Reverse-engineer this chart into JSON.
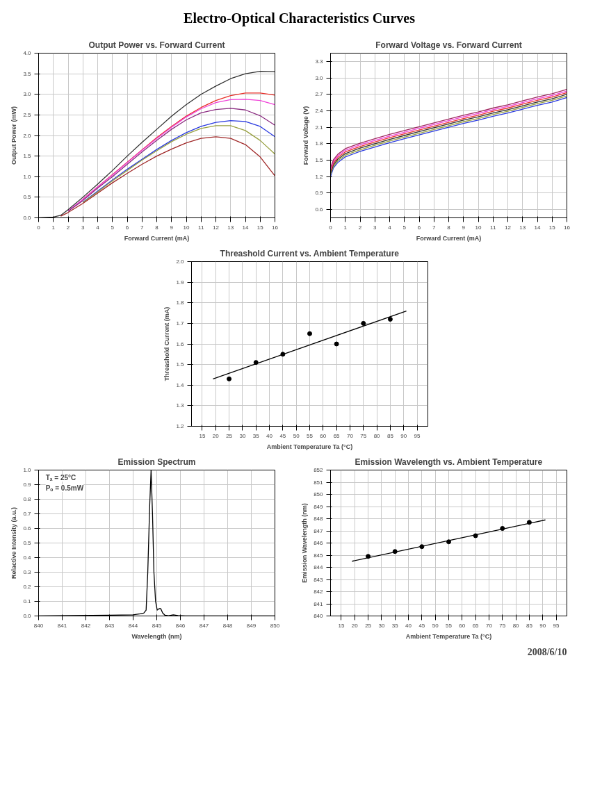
{
  "chart_data": [
    {
      "type": "other",
      "title": "Electro-Optical Characteristics Curves"
    },
    {
      "type": "line",
      "title": "Output Power vs. Forward Current",
      "xlabel": "Forward Current (mA)",
      "ylabel": "Output Power (mW)",
      "grid": true,
      "line_style": "solid",
      "x": [
        0,
        1,
        1.5,
        2,
        3,
        4,
        5,
        6,
        7,
        8,
        9,
        10,
        11,
        12,
        13,
        14,
        15,
        16
      ],
      "xlim": [
        0,
        16
      ],
      "xticks": [
        0,
        1,
        2,
        3,
        4,
        5,
        6,
        7,
        8,
        9,
        10,
        11,
        12,
        13,
        14,
        15,
        16
      ],
      "ylim": [
        0,
        4
      ],
      "yticks": [
        {
          "value": 0,
          "label": "0.0"
        },
        0.5,
        {
          "value": 1,
          "label": "1.0"
        },
        1.5,
        {
          "value": 2,
          "label": "2.0"
        },
        2.5,
        {
          "value": 3,
          "label": "3.0"
        },
        3.5,
        {
          "value": 4,
          "label": "4.0"
        }
      ],
      "series": [
        {
          "color": "#303030",
          "values": [
            0,
            0.02,
            0.06,
            0.2,
            0.5,
            0.82,
            1.15,
            1.5,
            1.83,
            2.15,
            2.47,
            2.75,
            3.0,
            3.2,
            3.38,
            3.5,
            3.56,
            3.55
          ]
        },
        {
          "color": "#e8302a",
          "values": [
            null,
            null,
            null,
            null,
            0.45,
            0.75,
            1.05,
            1.35,
            1.65,
            1.95,
            2.22,
            2.47,
            2.68,
            2.85,
            2.97,
            3.03,
            3.03,
            2.98
          ]
        },
        {
          "color": "#f040d8",
          "values": [
            null,
            null,
            null,
            0.17,
            0.45,
            0.75,
            1.04,
            1.34,
            1.64,
            1.93,
            2.2,
            2.45,
            2.65,
            2.8,
            2.87,
            2.88,
            2.85,
            2.75
          ]
        },
        {
          "color": "#8a2a80",
          "values": [
            null,
            null,
            null,
            0.16,
            0.42,
            0.72,
            1.0,
            1.3,
            1.6,
            1.88,
            2.15,
            2.38,
            2.55,
            2.63,
            2.66,
            2.62,
            2.48,
            2.25
          ]
        },
        {
          "color": "#2a3ae0",
          "values": [
            null,
            null,
            null,
            null,
            0.38,
            0.65,
            0.92,
            1.18,
            1.42,
            1.66,
            1.88,
            2.07,
            2.22,
            2.32,
            2.36,
            2.34,
            2.22,
            1.97
          ]
        },
        {
          "color": "#98a040",
          "values": [
            null,
            null,
            null,
            null,
            0.37,
            0.63,
            0.9,
            1.15,
            1.4,
            1.63,
            1.85,
            2.03,
            2.17,
            2.24,
            2.24,
            2.12,
            1.88,
            1.55
          ]
        },
        {
          "color": "#a02828",
          "values": [
            null,
            null,
            0.04,
            0.13,
            0.35,
            0.6,
            0.85,
            1.08,
            1.3,
            1.5,
            1.67,
            1.82,
            1.93,
            1.97,
            1.93,
            1.78,
            1.48,
            1.02
          ]
        }
      ]
    },
    {
      "type": "line",
      "title": "Forward Voltage vs. Forward Current",
      "xlabel": "Forward Current (mA)",
      "ylabel": "Forward Voltage (V)",
      "grid": true,
      "line_style": "solid",
      "x": [
        0,
        0.2,
        0.5,
        1,
        2,
        3,
        4,
        5,
        6,
        7,
        8,
        9,
        10,
        11,
        12,
        13,
        14,
        15,
        16
      ],
      "xlim": [
        0,
        16
      ],
      "xticks": [
        0,
        1,
        2,
        3,
        4,
        5,
        6,
        7,
        8,
        9,
        10,
        11,
        12,
        13,
        14,
        15,
        16
      ],
      "ylim": [
        0.45,
        3.45
      ],
      "yticks": [
        0.6,
        0.9,
        1.2,
        1.5,
        1.8,
        2.1,
        2.4,
        2.7,
        {
          "value": 3,
          "label": "3.0"
        },
        3.3
      ],
      "series": [
        {
          "color": "#2a3ae0",
          "values": [
            1.2,
            1.36,
            1.46,
            1.56,
            1.66,
            1.74,
            1.82,
            1.89,
            1.96,
            2.03,
            2.1,
            2.17,
            2.23,
            2.3,
            2.36,
            2.43,
            2.5,
            2.56,
            2.64
          ]
        },
        {
          "color": "#98a040",
          "values": [
            1.24,
            1.39,
            1.49,
            1.59,
            1.69,
            1.77,
            1.85,
            1.92,
            1.99,
            2.06,
            2.13,
            2.2,
            2.26,
            2.33,
            2.39,
            2.46,
            2.53,
            2.59,
            2.67
          ]
        },
        {
          "color": "#303030",
          "values": [
            1.27,
            1.42,
            1.52,
            1.62,
            1.72,
            1.8,
            1.88,
            1.95,
            2.02,
            2.09,
            2.16,
            2.23,
            2.29,
            2.36,
            2.42,
            2.49,
            2.56,
            2.62,
            2.7
          ]
        },
        {
          "color": "#e8302a",
          "values": [
            1.3,
            1.45,
            1.55,
            1.65,
            1.75,
            1.83,
            1.91,
            1.98,
            2.05,
            2.12,
            2.19,
            2.26,
            2.32,
            2.39,
            2.45,
            2.52,
            2.59,
            2.65,
            2.73
          ]
        },
        {
          "color": "#f040d8",
          "values": [
            1.33,
            1.48,
            1.58,
            1.68,
            1.78,
            1.86,
            1.94,
            2.01,
            2.08,
            2.15,
            2.22,
            2.29,
            2.35,
            2.42,
            2.48,
            2.55,
            2.62,
            2.68,
            2.76
          ]
        },
        {
          "color": "#a02860",
          "values": [
            1.36,
            1.51,
            1.61,
            1.71,
            1.81,
            1.89,
            1.97,
            2.04,
            2.11,
            2.18,
            2.25,
            2.32,
            2.38,
            2.45,
            2.51,
            2.58,
            2.65,
            2.71,
            2.79
          ]
        }
      ]
    },
    {
      "type": "scatter",
      "title": "Threashold Current vs. Ambient Temperature",
      "xlabel": "Ambient Temperature Ta (°C)",
      "ylabel": "Threashold Current (mA)",
      "grid": true,
      "xlim": [
        11,
        99
      ],
      "xticks": [
        15,
        20,
        25,
        30,
        35,
        40,
        45,
        50,
        55,
        60,
        65,
        70,
        75,
        80,
        85,
        90,
        95
      ],
      "ylim": [
        1.2,
        2.0
      ],
      "yticks": [
        1.2,
        1.3,
        1.4,
        1.5,
        1.6,
        1.7,
        1.8,
        1.9,
        {
          "value": 2,
          "label": "2.0"
        }
      ],
      "series": [
        {
          "type": "scatter",
          "marker": "circle",
          "color": "#000000",
          "x": [
            25,
            35,
            45,
            55,
            65,
            75,
            85
          ],
          "values": [
            1.43,
            1.51,
            1.55,
            1.65,
            1.6,
            1.7,
            1.72
          ]
        },
        {
          "type": "line",
          "color": "#000000",
          "x": [
            19,
            91
          ],
          "values": [
            1.43,
            1.76
          ]
        }
      ]
    },
    {
      "type": "line",
      "title": "Emission Spectrum",
      "xlabel": "Wavelength (nm)",
      "ylabel": "Relactive Intensity (a.u.)",
      "grid": true,
      "line_style": "solid",
      "annotations": [
        "Tₐ = 25°C",
        "Pₒ = 0.5mW"
      ],
      "x": [
        840,
        843,
        844,
        844.3,
        844.45,
        844.55,
        844.62,
        844.7,
        844.76,
        844.82,
        844.88,
        844.95,
        845.02,
        845.1,
        845.17,
        845.25,
        845.35,
        845.5,
        845.7,
        845.9,
        846.2,
        850
      ],
      "xlim": [
        840,
        850
      ],
      "xticks": [
        840,
        841,
        842,
        843,
        844,
        845,
        846,
        847,
        848,
        849,
        850
      ],
      "ylim": [
        0,
        1
      ],
      "yticks": [
        {
          "value": 0,
          "label": "0.0"
        },
        0.1,
        0.2,
        0.3,
        0.4,
        0.5,
        0.6,
        0.7,
        0.8,
        0.9,
        {
          "value": 1,
          "label": "1.0"
        }
      ],
      "series": [
        {
          "color": "#000000",
          "values": [
            0,
            0.005,
            0.008,
            0.015,
            0.02,
            0.04,
            0.3,
            0.75,
            1.0,
            0.7,
            0.3,
            0.1,
            0.04,
            0.05,
            0.05,
            0.02,
            0.005,
            0.002,
            0.008,
            0.003,
            0.001,
            0
          ]
        }
      ]
    },
    {
      "type": "scatter",
      "title": "Emission Wavelength vs. Ambient Temperature",
      "xlabel": "Ambient Temperature Ta (°C)",
      "ylabel": "Emission Wavelength (nm)",
      "grid": true,
      "annotations": [
        "2008/6/10"
      ],
      "xlim": [
        11,
        99
      ],
      "xticks": [
        15,
        20,
        25,
        30,
        35,
        40,
        45,
        50,
        55,
        60,
        65,
        70,
        75,
        80,
        85,
        90,
        95
      ],
      "ylim": [
        840,
        852
      ],
      "yticks": [
        840,
        841,
        842,
        843,
        844,
        845,
        846,
        847,
        848,
        849,
        850,
        851,
        852
      ],
      "series": [
        {
          "type": "scatter",
          "marker": "circle",
          "color": "#000000",
          "x": [
            25,
            35,
            45,
            55,
            65,
            75,
            85
          ],
          "values": [
            844.9,
            845.3,
            845.7,
            846.1,
            846.6,
            847.2,
            847.7
          ]
        },
        {
          "type": "line",
          "color": "#000000",
          "x": [
            19,
            91
          ],
          "values": [
            844.5,
            847.9
          ]
        }
      ]
    }
  ]
}
